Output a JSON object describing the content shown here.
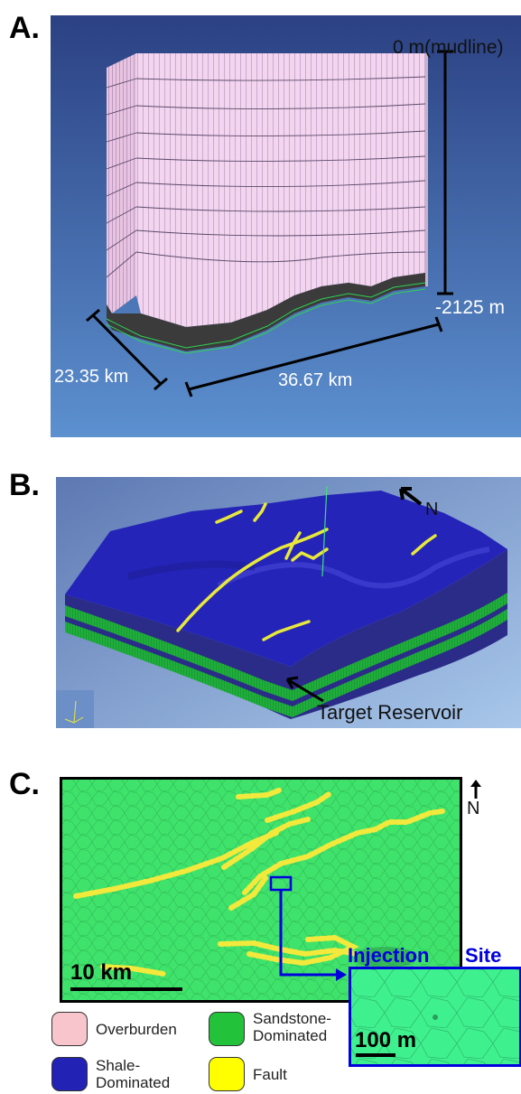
{
  "panel_a": {
    "letter": "A.",
    "depth_top": "0 m(mudline)",
    "depth_bottom": "-2125 m",
    "width_label": "23.35 km",
    "length_label": "36.67 km"
  },
  "panel_b": {
    "letter": "B.",
    "north": "N",
    "reservoir_label": "Target Reservoir"
  },
  "panel_c": {
    "letter": "C.",
    "north": "N",
    "scale_main": "10 km",
    "injection_word1": "Injection",
    "injection_word2": "Site",
    "scale_inset": "100 m"
  },
  "legend": [
    {
      "label": "Overburden",
      "color": "#f7c5cb"
    },
    {
      "label": "Sandstone-Dominated",
      "color": "#22c33a"
    },
    {
      "label": "Shale-Dominated",
      "color": "#2222b4"
    },
    {
      "label": "Fault",
      "color": "#ffff00"
    }
  ],
  "colors": {
    "overburden": "#f7c5cb",
    "sandstone": "#22c33a",
    "shale": "#2222b4",
    "fault": "#ffff00",
    "injection_site": "#0000dd"
  }
}
